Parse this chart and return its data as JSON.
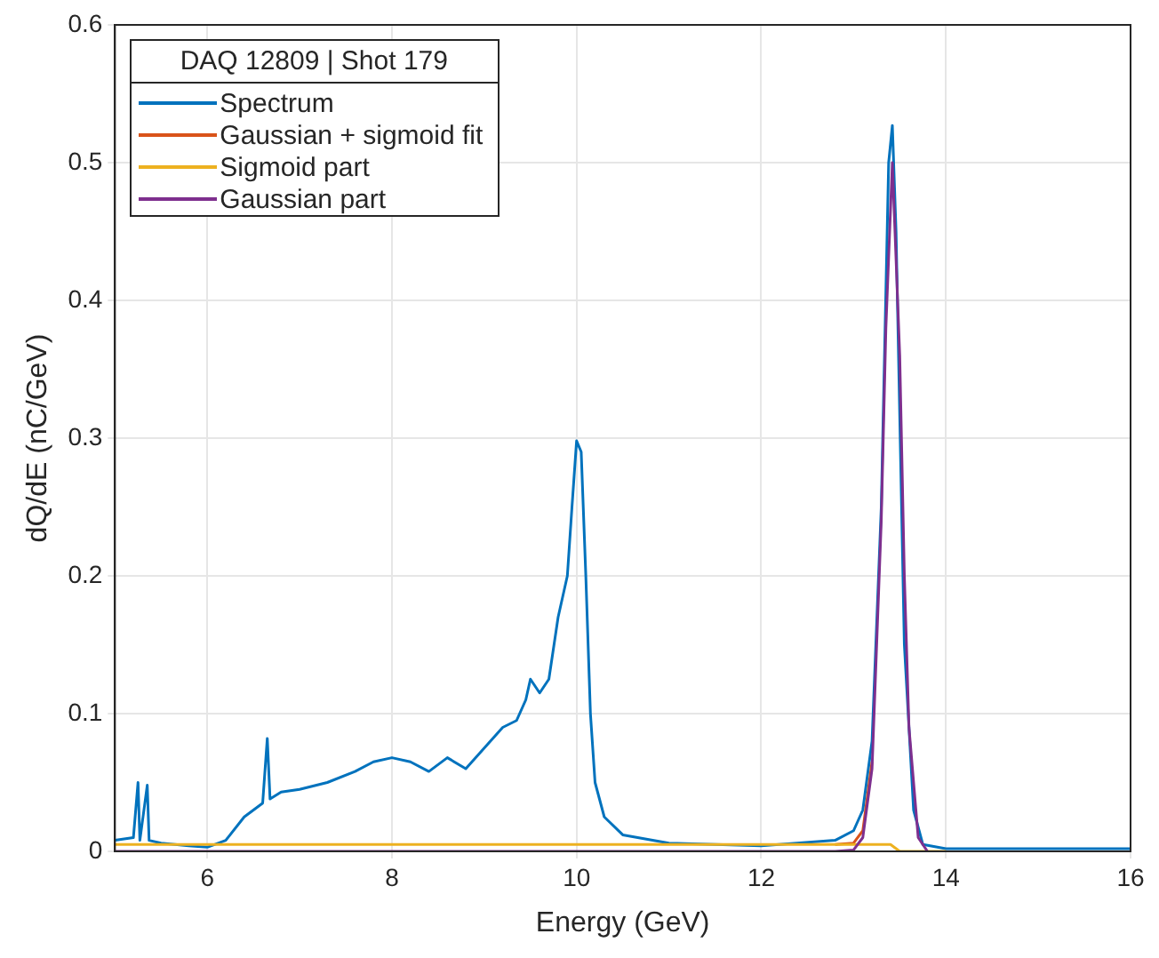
{
  "chart_data": {
    "type": "line",
    "xlabel": "Energy (GeV)",
    "ylabel": "dQ/dE (nC/GeV)",
    "legend_title": "DAQ 12809 | Shot 179",
    "legend": "top left",
    "grid": true,
    "marker": "none",
    "line_style": "solid",
    "xlim": [
      5,
      16
    ],
    "xticks": [
      6,
      8,
      10,
      12,
      14,
      16
    ],
    "ylim": [
      0,
      0.6
    ],
    "yticks": [
      0,
      0.1,
      0.2,
      0.3,
      0.4,
      0.5,
      0.6
    ],
    "series": [
      {
        "name": "Spectrum",
        "color": "#0072bd",
        "x": [
          5.0,
          5.2,
          5.25,
          5.27,
          5.35,
          5.37,
          5.5,
          5.8,
          6.0,
          6.2,
          6.4,
          6.6,
          6.65,
          6.68,
          6.8,
          7.0,
          7.3,
          7.6,
          7.8,
          8.0,
          8.2,
          8.4,
          8.6,
          8.8,
          9.0,
          9.2,
          9.35,
          9.45,
          9.5,
          9.6,
          9.7,
          9.8,
          9.9,
          9.95,
          10.0,
          10.05,
          10.1,
          10.15,
          10.2,
          10.3,
          10.5,
          11.0,
          12.0,
          12.8,
          13.0,
          13.1,
          13.2,
          13.3,
          13.38,
          13.42,
          13.46,
          13.55,
          13.65,
          13.75,
          14.0,
          16.0
        ],
        "values": [
          0.008,
          0.01,
          0.05,
          0.008,
          0.048,
          0.008,
          0.006,
          0.004,
          0.003,
          0.008,
          0.025,
          0.035,
          0.082,
          0.038,
          0.043,
          0.045,
          0.05,
          0.058,
          0.065,
          0.068,
          0.065,
          0.058,
          0.068,
          0.06,
          0.075,
          0.09,
          0.095,
          0.11,
          0.125,
          0.115,
          0.125,
          0.17,
          0.2,
          0.25,
          0.298,
          0.29,
          0.2,
          0.1,
          0.05,
          0.025,
          0.012,
          0.006,
          0.004,
          0.008,
          0.015,
          0.03,
          0.08,
          0.25,
          0.5,
          0.527,
          0.45,
          0.15,
          0.03,
          0.005,
          0.002,
          0.002
        ]
      },
      {
        "name": "Gaussian + sigmoid fit",
        "color": "#d95319",
        "x": [
          12.8,
          13.0,
          13.1,
          13.2
        ],
        "values": [
          0.005,
          0.006,
          0.015,
          0.065
        ]
      },
      {
        "name": "Sigmoid part",
        "color": "#edb120",
        "x": [
          5.0,
          13.4,
          13.5,
          14.0
        ],
        "values": [
          0.005,
          0.005,
          0.0,
          0.0
        ]
      },
      {
        "name": "Gaussian part",
        "color": "#7e2f8e",
        "x": [
          5.0,
          12.8,
          13.0,
          13.1,
          13.2,
          13.3,
          13.35,
          13.42,
          13.5,
          13.55,
          13.6,
          13.7,
          13.8
        ],
        "values": [
          0.0,
          0.0,
          0.001,
          0.01,
          0.06,
          0.24,
          0.38,
          0.5,
          0.36,
          0.2,
          0.09,
          0.01,
          0.0
        ]
      }
    ]
  }
}
